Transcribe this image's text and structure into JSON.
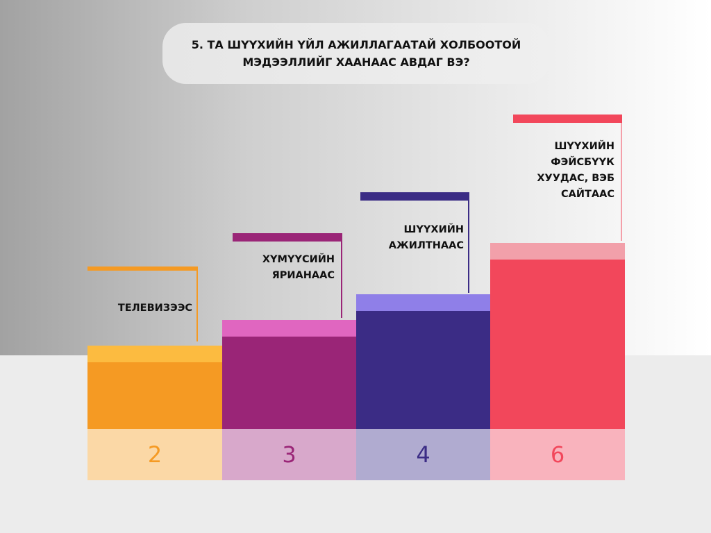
{
  "chart_data": {
    "type": "bar",
    "title": "5. ТА ШҮҮХИЙН ҮЙЛ АЖИЛЛАГААТАЙ ХОЛБООТОЙ\nМЭДЭЭЛЛИЙГ ХААНААС АВДАГ ВЭ?",
    "categories": [
      "ТЕЛЕВИЗЭЭС",
      "ХҮМҮҮСИЙН\nЯРИАНААС",
      "ШҮҮХИЙН\nАЖИЛТНААС",
      "ШҮҮХИЙН\nФЭЙСБҮҮК\nХУУДАС, ВЭБ\nСАЙТААС"
    ],
    "values": [
      2,
      3,
      4,
      6
    ],
    "value_labels": [
      "2",
      "3",
      "4",
      "6"
    ],
    "colors": [
      "#f59a23",
      "#9a2577",
      "#3b2c85",
      "#f2475b"
    ],
    "cap_colors": [
      "#fcbb40",
      "#e066c0",
      "#8f7fe8",
      "#f2a0aa"
    ],
    "box_colors": [
      "#fbd8a6",
      "#d8a8cb",
      "#b0abd0",
      "#f9b3bd"
    ],
    "xlabel": "",
    "ylabel": ""
  }
}
